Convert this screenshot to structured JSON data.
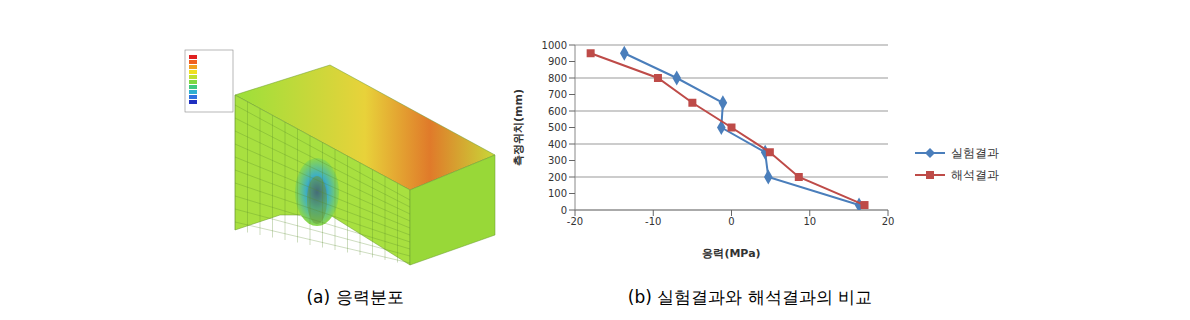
{
  "panel_a": {
    "caption": "(a) 응력분포"
  },
  "chart_data": {
    "type": "line",
    "caption": "(b) 실험결과와 해석결과의 비교",
    "x_label": "응력(MPa)",
    "y_label": "측정위치(mm)",
    "xlim": [
      -20,
      20
    ],
    "xticks": [
      -20,
      -10,
      0,
      10,
      20
    ],
    "ylim": [
      0,
      1000
    ],
    "yticks": [
      0,
      100,
      200,
      300,
      400,
      500,
      600,
      700,
      800,
      900,
      1000
    ],
    "grid": true,
    "legend": "right",
    "series": [
      {
        "name": "실험결과",
        "color": "#4a7ebb",
        "marker": "diamond",
        "x": [
          -13.7,
          -7,
          -1.1,
          -1.3,
          4.3,
          4.7,
          16.3
        ],
        "values": [
          950,
          800,
          650,
          500,
          350,
          200,
          30
        ]
      },
      {
        "name": "해석결과",
        "color": "#be4b48",
        "marker": "square",
        "x": [
          -18,
          -9.4,
          -5,
          0,
          4.9,
          8.6,
          17
        ],
        "values": [
          950,
          800,
          650,
          500,
          350,
          200,
          30
        ]
      }
    ]
  }
}
